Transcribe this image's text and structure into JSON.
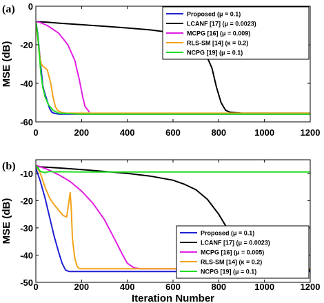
{
  "chart_data": [
    {
      "type": "line",
      "panel_label": "(a)",
      "ylabel": "MSE (dB)",
      "xlabel": "",
      "xlim": [
        0,
        1200
      ],
      "ylim": [
        -60,
        0
      ],
      "xticks": [
        "0",
        "200",
        "400",
        "600",
        "800",
        "1000",
        "1200"
      ],
      "yticks": [
        "-60",
        "-40",
        "-20",
        "0"
      ],
      "legend_position": "top-right",
      "series": [
        {
          "name": "Proposed (μ = 0.1)",
          "color": "#1f1fd6",
          "x": [
            0,
            8,
            16,
            24,
            30,
            36,
            44,
            52,
            60,
            70,
            80,
            100,
            150,
            300,
            600,
            900,
            1200
          ],
          "y": [
            -8,
            -14,
            -24,
            -34,
            -41,
            -44,
            -47,
            -50,
            -53,
            -55,
            -55.5,
            -56,
            -56,
            -56,
            -56,
            -56,
            -56
          ]
        },
        {
          "name": "LCANF [17] (μ = 0.0023)",
          "color": "#000000",
          "x": [
            0,
            50,
            100,
            200,
            300,
            400,
            500,
            600,
            650,
            700,
            740,
            770,
            790,
            810,
            830,
            850,
            900,
            1000,
            1200
          ],
          "y": [
            -8,
            -8.3,
            -8.8,
            -9.6,
            -10.4,
            -11.3,
            -12.3,
            -13.8,
            -15,
            -18,
            -24,
            -32,
            -42,
            -50,
            -54,
            -55,
            -55.5,
            -55.5,
            -55.5
          ]
        },
        {
          "name": "MCPG [16] (μ = 0.009)",
          "color": "#e21fe2",
          "x": [
            0,
            20,
            50,
            100,
            140,
            170,
            190,
            205,
            215,
            225,
            235
          ],
          "y": [
            -8,
            -8.5,
            -10,
            -14,
            -20,
            -28,
            -38,
            -47,
            -52,
            -53.5,
            -55
          ]
        },
        {
          "name": "RLS-SM  [14] (κ = 0.2)",
          "color": "#f2a31a",
          "x": [
            0,
            10,
            18,
            24,
            30,
            50,
            65,
            75,
            85,
            95,
            110,
            130,
            200,
            400,
            700,
            1000,
            1200
          ],
          "y": [
            -8,
            -18,
            -27,
            -30,
            -31,
            -33,
            -40,
            -47,
            -52,
            -54,
            -55,
            -55.5,
            -55.5,
            -55.5,
            -55.5,
            -55.5,
            -55.5
          ]
        },
        {
          "name": "NCPG  [19] (μ = 0.1)",
          "color": "#22dd22",
          "x": [
            0,
            8,
            15,
            22,
            30,
            40,
            55,
            75,
            100,
            200,
            400,
            700,
            1000,
            1200
          ],
          "y": [
            -8,
            -15,
            -25,
            -35,
            -42,
            -47,
            -51,
            -54,
            -55.5,
            -56,
            -56,
            -56,
            -56,
            -56
          ]
        }
      ]
    },
    {
      "type": "line",
      "panel_label": "(b)",
      "ylabel": "MSE (dB)",
      "xlabel": "Iteration Number",
      "xlim": [
        0,
        1200
      ],
      "ylim": [
        -50,
        -5
      ],
      "xticks": [
        "0",
        "200",
        "400",
        "600",
        "800",
        "1000",
        "1200"
      ],
      "yticks": [
        "-50",
        "-40",
        "-30",
        "-20",
        "-10"
      ],
      "legend_position": "bottom-right",
      "series": [
        {
          "name": "Proposed (μ = 0.1)",
          "color": "#1f1fd6",
          "x": [
            0,
            20,
            40,
            60,
            80,
            100,
            115,
            130,
            145,
            160,
            200,
            400,
            700,
            1000,
            1200
          ],
          "y": [
            -8,
            -13,
            -19,
            -26,
            -33,
            -39,
            -43,
            -45.5,
            -46,
            -46,
            -46,
            -46,
            -46,
            -46,
            -46
          ]
        },
        {
          "name": "LCANF [17] (μ = 0.0023)",
          "color": "#000000",
          "x": [
            0,
            100,
            200,
            300,
            400,
            500,
            600,
            650,
            700,
            750,
            800,
            850,
            900,
            950,
            1000,
            1100,
            1200
          ],
          "y": [
            -7.5,
            -8,
            -8.6,
            -9.3,
            -10,
            -11,
            -12.5,
            -14,
            -16,
            -19.5,
            -25,
            -32,
            -38.5,
            -42.5,
            -44.5,
            -45.5,
            -45.5
          ]
        },
        {
          "name": "MCPG [16] (μ = 0.005)",
          "color": "#e21fe2",
          "x": [
            0,
            50,
            100,
            150,
            200,
            250,
            300,
            350,
            380,
            400,
            430,
            460,
            500,
            700,
            1000,
            1200
          ],
          "y": [
            -7,
            -8.5,
            -10.5,
            -13,
            -16.5,
            -21,
            -27,
            -35,
            -40,
            -43,
            -44.7,
            -45,
            -45,
            -45,
            -45,
            -45
          ]
        },
        {
          "name": "RLS-SM  [14] (κ = 0.2)",
          "color": "#f2a31a",
          "x": [
            0,
            20,
            40,
            60,
            80,
            100,
            120,
            135,
            150,
            155,
            160,
            170,
            180,
            190,
            200,
            300,
            600,
            900,
            1200
          ],
          "y": [
            -7,
            -10,
            -15,
            -19,
            -21.5,
            -23.5,
            -25.5,
            -26,
            -17,
            -23,
            -34,
            -41,
            -44,
            -45,
            -45,
            -45,
            -45,
            -45,
            -45
          ]
        },
        {
          "name": "NCPG  [19] (μ = 0.1)",
          "color": "#22dd22",
          "x": [
            0,
            20,
            40,
            60,
            80,
            100,
            200,
            400,
            600,
            800,
            1000,
            1200
          ],
          "y": [
            -7,
            -9.3,
            -9.7,
            -9.3,
            -9.5,
            -9.4,
            -9.5,
            -9.5,
            -9.5,
            -9.5,
            -9.5,
            -9.5
          ]
        }
      ]
    }
  ]
}
